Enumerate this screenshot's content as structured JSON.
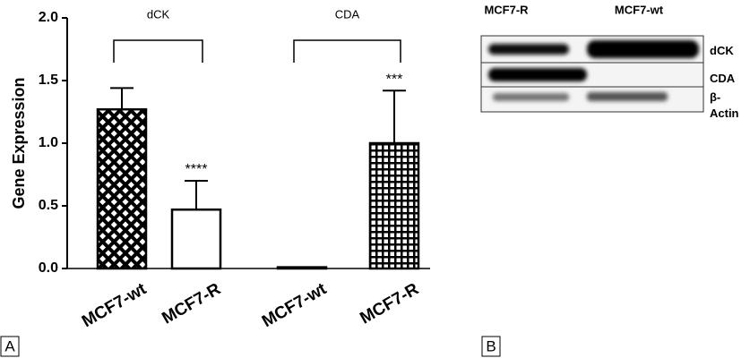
{
  "chart_data": {
    "type": "bar",
    "y_label": "Gene Expression",
    "categories": [
      "MCF7-wt",
      "MCF7-R",
      "MCF7-wt",
      "MCF7-R"
    ],
    "values": [
      1.27,
      0.47,
      0.01,
      1.0
    ],
    "errors": [
      0.17,
      0.23,
      0,
      0.42
    ],
    "patterns": [
      "crosshatch",
      "none",
      "none",
      "grid"
    ],
    "color": "#000000",
    "annotations": [
      null,
      "****",
      null,
      "***"
    ],
    "groups": [
      {
        "label": "dCK",
        "members": [
          0,
          1
        ]
      },
      {
        "label": "CDA",
        "members": [
          2,
          3
        ]
      }
    ],
    "ylim": [
      0,
      2.0
    ],
    "yticks": [
      {
        "value": 0,
        "label": "0.0"
      },
      {
        "value": 0.5,
        "label": "0.5"
      },
      {
        "value": 1.0,
        "label": "1.0"
      },
      {
        "value": 1.5,
        "label": "1.5"
      },
      {
        "value": 2.0,
        "label": "2.0"
      }
    ]
  },
  "blot": {
    "columns": [
      "MCF7-R",
      "MCF7-wt"
    ],
    "rows": [
      "dCK",
      "CDA",
      "β-Actin"
    ]
  },
  "panel_labels": [
    "A",
    "B"
  ]
}
